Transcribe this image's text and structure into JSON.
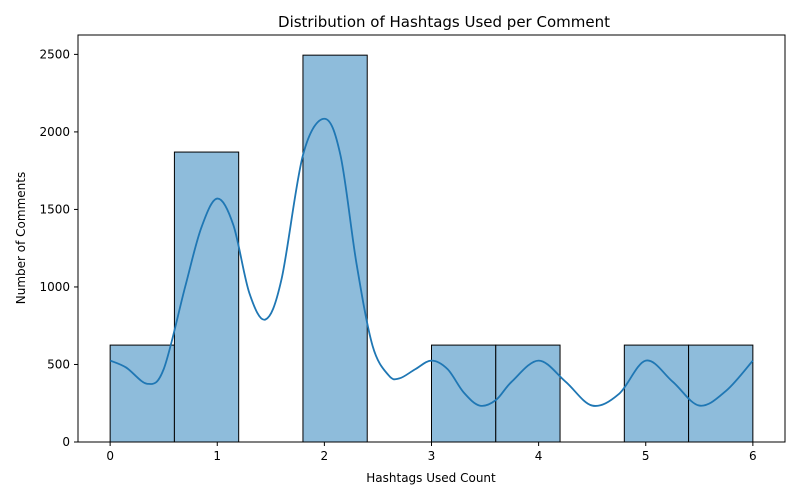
{
  "chart_data": {
    "type": "bar",
    "subtype": "histogram",
    "title": "Distribution of Hashtags Used per Comment",
    "xlabel": "Hashtags Used Count",
    "ylabel": "Number of Comments",
    "xlim": [
      -0.3,
      6.3
    ],
    "ylim": [
      0,
      2625
    ],
    "xticks": [
      0,
      1,
      2,
      3,
      4,
      5,
      6
    ],
    "yticks": [
      0,
      500,
      1000,
      1500,
      2000,
      2500
    ],
    "bins": [
      {
        "start": 0.0,
        "end": 0.6,
        "value": 625
      },
      {
        "start": 0.6,
        "end": 1.2,
        "value": 1870
      },
      {
        "start": 1.2,
        "end": 1.8,
        "value": 0
      },
      {
        "start": 1.8,
        "end": 2.4,
        "value": 2495
      },
      {
        "start": 2.4,
        "end": 3.0,
        "value": 0
      },
      {
        "start": 3.0,
        "end": 3.6,
        "value": 625
      },
      {
        "start": 3.6,
        "end": 4.2,
        "value": 625
      },
      {
        "start": 4.2,
        "end": 4.8,
        "value": 0
      },
      {
        "start": 4.8,
        "end": 5.4,
        "value": 625
      },
      {
        "start": 5.4,
        "end": 6.0,
        "value": 625
      }
    ],
    "kde": {
      "x": [
        0,
        0.15,
        0.35,
        0.5,
        0.7,
        0.85,
        1.0,
        1.15,
        1.3,
        1.45,
        1.6,
        1.8,
        2.0,
        2.15,
        2.3,
        2.45,
        2.6,
        2.7,
        2.85,
        3.0,
        3.15,
        3.3,
        3.45,
        3.6,
        3.75,
        4.0,
        4.25,
        4.5,
        4.75,
        5.0,
        5.25,
        5.5,
        5.75,
        6.0
      ],
      "y": [
        525,
        480,
        375,
        470,
        1000,
        1380,
        1570,
        1400,
        960,
        790,
        1050,
        1850,
        2085,
        1850,
        1150,
        620,
        430,
        410,
        470,
        525,
        470,
        320,
        235,
        270,
        390,
        525,
        390,
        235,
        310,
        525,
        390,
        235,
        330,
        525
      ]
    },
    "bar_color": "#8ebcdb",
    "bar_edge_color": "#000000",
    "line_color": "#1f77b4",
    "grid": false,
    "legend": "none"
  }
}
